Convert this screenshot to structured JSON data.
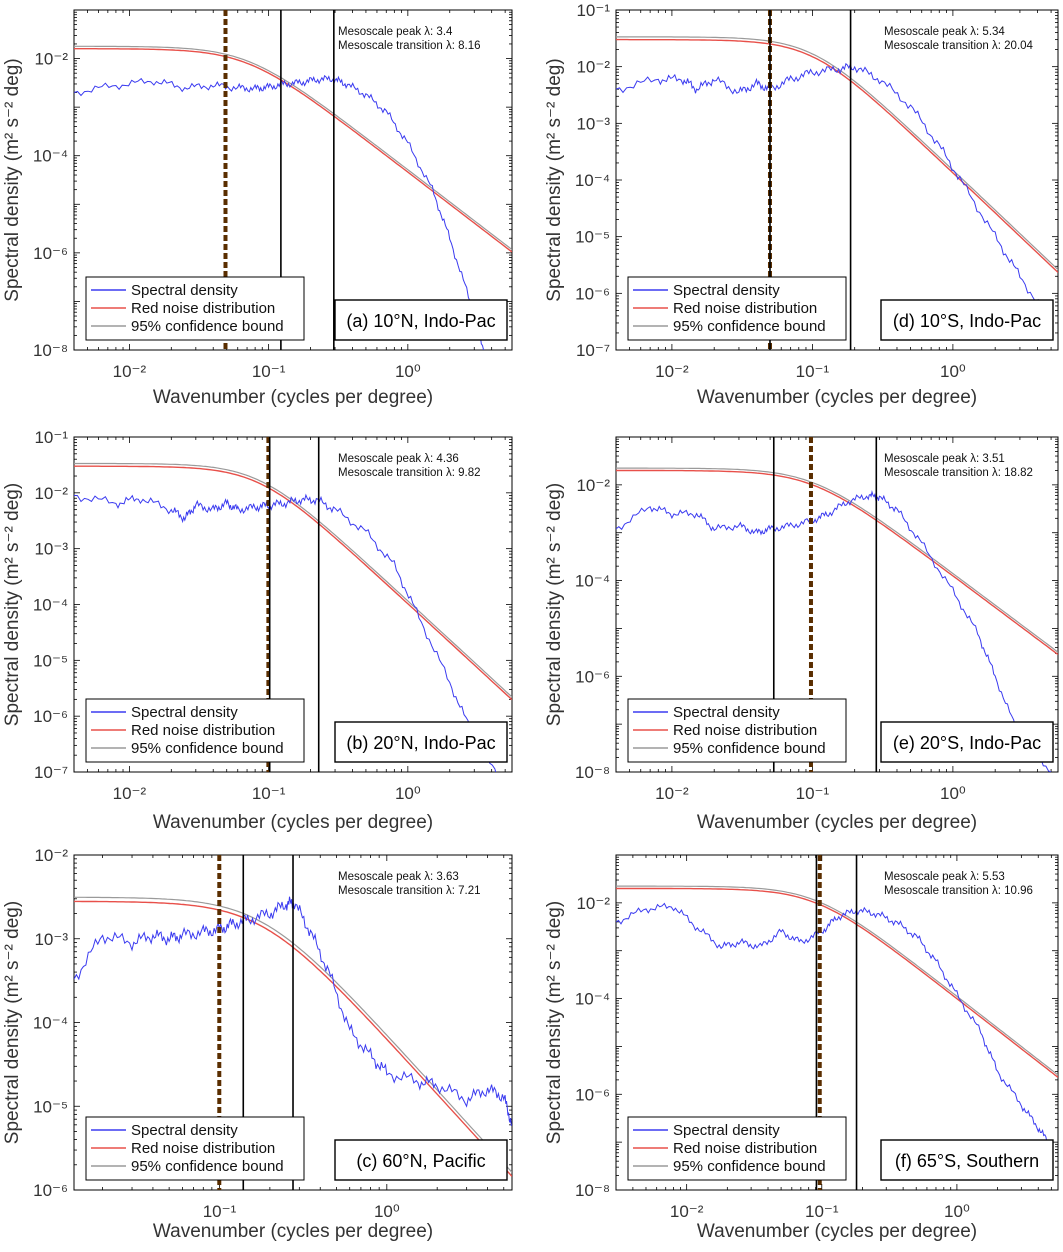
{
  "colors": {
    "spectral": "#3b3bf0",
    "red_noise": "#e8504a",
    "confidence": "#9a9a9a",
    "peak_line": "#000000",
    "dashed_line": "#5a2e00"
  },
  "chart_data": [
    {
      "id": "a",
      "type": "line",
      "panel_label": "(a) 10°N, Indo-Pac",
      "xlabel": "Wavenumber (cycles per degree)",
      "ylabel": "Spectral density (m² s⁻² deg)",
      "xscale": "log",
      "yscale": "log",
      "xlim": [
        0.004,
        5.6
      ],
      "ylim": [
        1e-08,
        0.1
      ],
      "x_ticks": [
        "10⁻²",
        "10⁻¹",
        "10⁰"
      ],
      "x_tick_values": [
        0.01,
        0.1,
        1
      ],
      "y_ticks": [
        "10⁻⁸",
        "10⁻⁶",
        "10⁻⁴",
        "10⁻²"
      ],
      "y_tick_values": [
        1e-08,
        1e-06,
        0.0001,
        0.01
      ],
      "peak_text": "Mesoscale peak  λ: 3.4",
      "transition_text": "Mesoscale transition  λ: 8.16",
      "vlines": [
        0.1225,
        0.294
      ],
      "dashed_vline": 0.049,
      "legend": [
        "Spectral density",
        "Red noise distribution",
        "95% confidence bound"
      ],
      "red_noise": {
        "plateau": 0.016,
        "knee": 0.07,
        "slope": 2.2
      },
      "series": [
        {
          "name": "Spectral density",
          "x": [
            0.004,
            0.008,
            0.015,
            0.025,
            0.04,
            0.06,
            0.08,
            0.1,
            0.13,
            0.17,
            0.22,
            0.29,
            0.36,
            0.5,
            0.7,
            1.0,
            1.5,
            2.0,
            2.8,
            3.5
          ],
          "y": [
            0.002,
            0.0028,
            0.0035,
            0.0025,
            0.0028,
            0.0025,
            0.0024,
            0.0026,
            0.003,
            0.0032,
            0.0037,
            0.0038,
            0.003,
            0.0018,
            0.0008,
            0.00018,
            2e-05,
            2e-06,
            1e-07,
            1e-08
          ]
        }
      ]
    },
    {
      "id": "d",
      "type": "line",
      "panel_label": "(d) 10°S, Indo-Pac",
      "xlabel": "Wavenumber (cycles per degree)",
      "ylabel": "Spectral density (m² s⁻² deg)",
      "xscale": "log",
      "yscale": "log",
      "xlim": [
        0.004,
        5.6
      ],
      "ylim": [
        1e-07,
        0.1
      ],
      "x_ticks": [
        "10⁻²",
        "10⁻¹",
        "10⁰"
      ],
      "x_tick_values": [
        0.01,
        0.1,
        1
      ],
      "y_ticks": [
        "10⁻⁷",
        "10⁻⁶",
        "10⁻⁵",
        "10⁻⁴",
        "10⁻³",
        "10⁻²",
        "10⁻¹"
      ],
      "y_tick_values": [
        1e-07,
        1e-06,
        1e-05,
        0.0001,
        0.001,
        0.01,
        0.1
      ],
      "peak_text": "Mesoscale peak  λ: 5.34",
      "transition_text": "Mesoscale transition  λ: 20.04",
      "vlines": [
        0.0499,
        0.187
      ],
      "dashed_vline": 0.0499,
      "legend": [
        "Spectral density",
        "Red noise distribution",
        "95% confidence bound"
      ],
      "red_noise": {
        "plateau": 0.03,
        "knee": 0.1,
        "slope": 2.35
      },
      "series": [
        {
          "name": "Spectral density",
          "x": [
            0.004,
            0.008,
            0.012,
            0.015,
            0.02,
            0.03,
            0.04,
            0.05,
            0.07,
            0.1,
            0.15,
            0.2,
            0.3,
            0.5,
            0.8,
            1.2,
            2.0,
            3.0,
            5.0
          ],
          "y": [
            0.004,
            0.006,
            0.006,
            0.004,
            0.006,
            0.0035,
            0.005,
            0.004,
            0.006,
            0.008,
            0.009,
            0.01,
            0.006,
            0.002,
            0.0004,
            8e-05,
            1e-05,
            2e-06,
            3e-07
          ]
        }
      ]
    },
    {
      "id": "b",
      "type": "line",
      "panel_label": "(b) 20°N, Indo-Pac",
      "xlabel": "Wavenumber (cycles per degree)",
      "ylabel": "Spectral density (m² s⁻² deg)",
      "xscale": "log",
      "yscale": "log",
      "xlim": [
        0.004,
        5.6
      ],
      "ylim": [
        1e-07,
        0.1
      ],
      "x_ticks": [
        "10⁻²",
        "10⁻¹",
        "10⁰"
      ],
      "x_tick_values": [
        0.01,
        0.1,
        1
      ],
      "y_ticks": [
        "10⁻⁷",
        "10⁻⁶",
        "10⁻⁵",
        "10⁻⁴",
        "10⁻³",
        "10⁻²",
        "10⁻¹"
      ],
      "y_tick_values": [
        1e-07,
        1e-06,
        1e-05,
        0.0001,
        0.001,
        0.01,
        0.1
      ],
      "peak_text": "Mesoscale peak  λ: 4.36",
      "transition_text": "Mesoscale transition  λ: 9.82",
      "vlines": [
        0.1018,
        0.229
      ],
      "dashed_vline": 0.0996,
      "legend": [
        "Spectral density",
        "Red noise distribution",
        "95% confidence bound"
      ],
      "red_noise": {
        "plateau": 0.03,
        "knee": 0.085,
        "slope": 2.3
      },
      "series": [
        {
          "name": "Spectral density",
          "x": [
            0.004,
            0.008,
            0.012,
            0.02,
            0.025,
            0.03,
            0.04,
            0.05,
            0.06,
            0.08,
            0.1,
            0.13,
            0.17,
            0.22,
            0.3,
            0.5,
            0.8,
            1.2,
            2.0,
            3.0,
            5.0
          ],
          "y": [
            0.009,
            0.0065,
            0.008,
            0.005,
            0.0035,
            0.006,
            0.005,
            0.0065,
            0.005,
            0.0055,
            0.006,
            0.0065,
            0.0075,
            0.0075,
            0.005,
            0.002,
            0.0005,
            6e-05,
            4e-06,
            4e-07,
            5e-08
          ]
        }
      ]
    },
    {
      "id": "e",
      "type": "line",
      "panel_label": "(e) 20°S, Indo-Pac",
      "xlabel": "Wavenumber (cycles per degree)",
      "ylabel": "Spectral density (m² s⁻² deg)",
      "xscale": "log",
      "yscale": "log",
      "xlim": [
        0.004,
        5.6
      ],
      "ylim": [
        1e-08,
        0.1
      ],
      "x_ticks": [
        "10⁻²",
        "10⁻¹",
        "10⁰"
      ],
      "x_tick_values": [
        0.01,
        0.1,
        1
      ],
      "y_ticks": [
        "10⁻⁸",
        "10⁻⁶",
        "10⁻⁴",
        "10⁻²"
      ],
      "y_tick_values": [
        1e-08,
        1e-06,
        0.0001,
        0.01
      ],
      "peak_text": "Mesoscale peak  λ: 3.51",
      "transition_text": "Mesoscale transition  λ: 18.82",
      "vlines": [
        0.0531,
        0.285
      ],
      "dashed_vline": 0.0977,
      "legend": [
        "Spectral density",
        "Red noise distribution",
        "95% confidence bound"
      ],
      "red_noise": {
        "plateau": 0.02,
        "knee": 0.1,
        "slope": 2.2
      },
      "series": [
        {
          "name": "Spectral density",
          "x": [
            0.004,
            0.007,
            0.01,
            0.015,
            0.02,
            0.03,
            0.04,
            0.05,
            0.07,
            0.1,
            0.13,
            0.18,
            0.25,
            0.3,
            0.4,
            0.6,
            1.0,
            1.5,
            2.0,
            3.0,
            5.0
          ],
          "y": [
            0.0012,
            0.0035,
            0.0025,
            0.0025,
            0.0012,
            0.0014,
            0.001,
            0.0012,
            0.0014,
            0.0018,
            0.0025,
            0.0045,
            0.006,
            0.0055,
            0.003,
            0.0006,
            6e-05,
            8e-06,
            1e-06,
            5e-08,
            1e-08
          ]
        }
      ]
    },
    {
      "id": "c",
      "type": "line",
      "panel_label": "(c) 60°N, Pacific",
      "xlabel": "Wavenumber (cycles per degree)",
      "ylabel": "Spectral density (m² s⁻² deg)",
      "xscale": "log",
      "yscale": "log",
      "xlim": [
        0.0135,
        5.6
      ],
      "ylim": [
        1e-06,
        0.01
      ],
      "x_ticks": [
        "10⁻¹",
        "10⁰"
      ],
      "x_tick_values": [
        0.1,
        1
      ],
      "y_ticks": [
        "10⁻⁶",
        "10⁻⁵",
        "10⁻⁴",
        "10⁻³",
        "10⁻²"
      ],
      "y_tick_values": [
        1e-06,
        1e-05,
        0.0001,
        0.001,
        0.01
      ],
      "peak_text": "Mesoscale peak  λ: 3.63",
      "transition_text": "Mesoscale transition  λ: 7.21",
      "vlines": [
        0.1387,
        0.275
      ],
      "dashed_vline": 0.0997,
      "legend": [
        "Spectral density",
        "Red noise distribution",
        "95% confidence bound"
      ],
      "red_noise": {
        "plateau": 0.0028,
        "knee": 0.18,
        "slope": 2.2
      },
      "series": [
        {
          "name": "Spectral density",
          "x": [
            0.0135,
            0.02,
            0.03,
            0.04,
            0.05,
            0.06,
            0.08,
            0.1,
            0.12,
            0.15,
            0.2,
            0.25,
            0.28,
            0.35,
            0.45,
            0.6,
            0.8,
            1.0,
            1.5,
            2.0,
            3.0,
            4.0,
            5.0,
            5.6
          ],
          "y": [
            0.00033,
            0.0011,
            0.0009,
            0.0011,
            0.001,
            0.0011,
            0.0012,
            0.0013,
            0.0015,
            0.0017,
            0.002,
            0.0026,
            0.0027,
            0.0012,
            0.0004,
            8e-05,
            4e-05,
            2.5e-05,
            2e-05,
            1.8e-05,
            1.2e-05,
            1.6e-05,
            1.3e-05,
            6e-06
          ]
        }
      ]
    },
    {
      "id": "f",
      "type": "line",
      "panel_label": "(f) 65°S, Southern",
      "xlabel": "Wavenumber (cycles per degree)",
      "ylabel": "Spectral density (m² s⁻² deg)",
      "xscale": "log",
      "yscale": "log",
      "xlim": [
        0.003,
        5.6
      ],
      "ylim": [
        1e-08,
        0.1
      ],
      "x_ticks": [
        "10⁻²",
        "10⁻¹",
        "10⁰"
      ],
      "x_tick_values": [
        0.01,
        0.1,
        1
      ],
      "y_ticks": [
        "10⁻⁸",
        "10⁻⁶",
        "10⁻⁴",
        "10⁻²"
      ],
      "y_tick_values": [
        1e-08,
        1e-06,
        0.0001,
        0.01
      ],
      "peak_text": "Mesoscale peak  λ: 5.53",
      "transition_text": "Mesoscale transition  λ: 10.96",
      "vlines": [
        0.0913,
        0.1808
      ],
      "dashed_vline": 0.0966,
      "legend": [
        "Spectral density",
        "Red noise distribution",
        "95% confidence bound"
      ],
      "red_noise": {
        "plateau": 0.02,
        "knee": 0.09,
        "slope": 2.2
      },
      "series": [
        {
          "name": "Spectral density",
          "x": [
            0.003,
            0.005,
            0.008,
            0.012,
            0.018,
            0.025,
            0.035,
            0.05,
            0.07,
            0.1,
            0.13,
            0.18,
            0.25,
            0.35,
            0.5,
            0.7,
            1.0,
            1.5,
            2.0,
            3.0,
            4.0,
            5.0
          ],
          "y": [
            0.004,
            0.0075,
            0.0085,
            0.003,
            0.0012,
            0.0015,
            0.0012,
            0.0025,
            0.0015,
            0.0025,
            0.005,
            0.007,
            0.006,
            0.004,
            0.002,
            0.0006,
            0.00012,
            2e-05,
            3e-06,
            6e-07,
            2e-07,
            8e-08
          ]
        }
      ]
    }
  ]
}
